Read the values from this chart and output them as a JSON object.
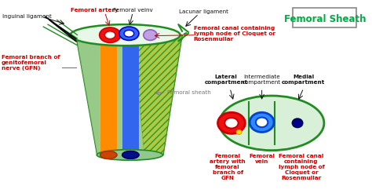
{
  "title": "Femoral Sheath",
  "title_color": "#00AA44",
  "bg_color": "#ffffff",
  "labels": {
    "inguinal_ligament": "Inguinal ligament",
    "femoral_artery": "Femoral artery",
    "femoral_vein": "Femoral veinv",
    "lacunar_ligament": "Lacunar ligament",
    "femoral_canal": "Femoral canal containing\nlymph node of Cloquet or\nRosenmullar",
    "femoral_branch": "Femoral branch of\ngenitofemoral\nnerve (GFN)",
    "femoral_sheath": "Femoral sheath",
    "lateral_compartment": "Lateral\ncompartment",
    "intermediate_compartment": "Intermediate\ncompartment",
    "medial_compartment": "Medial\ncompartment",
    "fa_label": "Femoral\nartery with\nfemoral\nbranch of\nGFN",
    "fv_label": "Femoral\nvein",
    "fc_label": "Femoral canal\ncontaining\nlymph node of\nCloquet or\nRosenmullar"
  },
  "colors": {
    "red": "#EE1111",
    "blue": "#1155EE",
    "orange": "#FF8C00",
    "green_sheath": "#228B22",
    "light_green": "#C8EEC8",
    "yellow_green": "#C8D860",
    "tube_green": "#90C890",
    "purple": "#B090D8",
    "dark_blue": "#000080",
    "yellow": "#FFD700",
    "red_label": "#CC0000",
    "green_label": "#009933",
    "black": "#111111",
    "gray": "#777777",
    "hatch_green": "#A8C840"
  }
}
